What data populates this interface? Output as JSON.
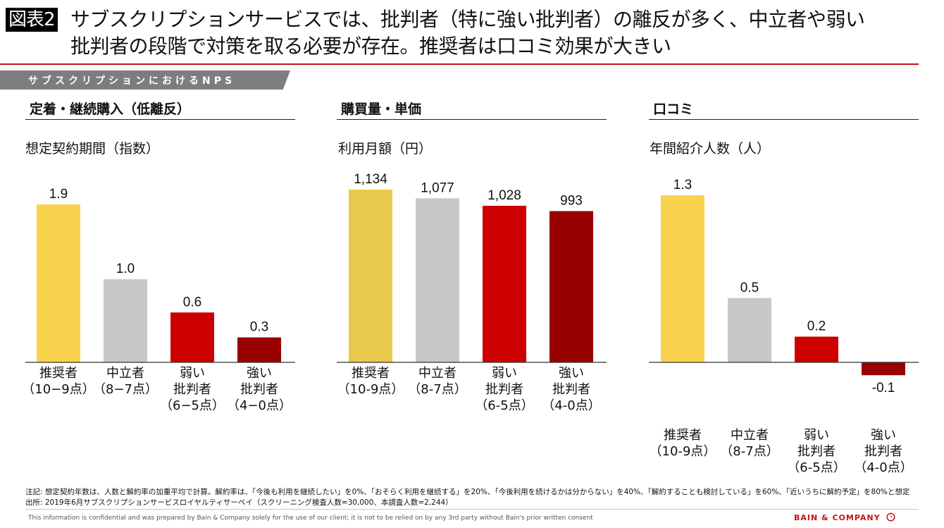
{
  "header": {
    "figure_badge": "図表2",
    "title_line1": "サブスクリプションサービスでは、批判者（特に強い批判者）の離反が多く、中立者や弱い",
    "title_line2": "批判者の段階で対策を取る必要が存在。推奨者は口コミ効果が大きい"
  },
  "banner": {
    "label": "サブスクリプションにおけるNPS"
  },
  "colors": {
    "accent_red": "#c0161d",
    "promoter": "#f9d34d",
    "promoter_alt": "#e8c94b",
    "neutral": "#c8c8c8",
    "weak_critic": "#cc0000",
    "strong_critic": "#990000"
  },
  "sections": [
    {
      "heading": "定着・継続購入（低離反）",
      "metric": "想定契約期間（指数）"
    },
    {
      "heading": "購買量・単価",
      "metric": "利用月額（円）"
    },
    {
      "heading": "口コミ",
      "metric": "年間紹介人数（人）"
    }
  ],
  "chart_data": [
    {
      "type": "bar",
      "title": "想定契約期間（指数）",
      "categories": [
        [
          "推奨者",
          "（10−9点）"
        ],
        [
          "中立者",
          "（8−7点）"
        ],
        [
          "弱い",
          "批判者",
          "（6−5点）"
        ],
        [
          "強い",
          "批判者",
          "（4−0点）"
        ]
      ],
      "values": [
        1.9,
        1.0,
        0.6,
        0.3
      ],
      "labels": [
        "1.9",
        "1.0",
        "0.6",
        "0.3"
      ],
      "ylim": [
        0,
        1.9
      ],
      "xlabel": "",
      "ylabel": "",
      "grid": false
    },
    {
      "type": "bar",
      "title": "利用月額（円）",
      "categories": [
        [
          "推奨者",
          "（10-9点）"
        ],
        [
          "中立者",
          "（8-7点）"
        ],
        [
          "弱い",
          "批判者",
          "（6-5点）"
        ],
        [
          "強い",
          "批判者",
          "（4-0点）"
        ]
      ],
      "values": [
        1134,
        1077,
        1028,
        993
      ],
      "labels": [
        "1,134",
        "1,077",
        "1,028",
        "993"
      ],
      "ylim": [
        0,
        1134
      ],
      "xlabel": "",
      "ylabel": "",
      "grid": false
    },
    {
      "type": "bar",
      "title": "年間紹介人数（人）",
      "categories": [
        [
          "推奨者",
          "（10-9点）"
        ],
        [
          "中立者",
          "（8-7点）"
        ],
        [
          "弱い",
          "批判者",
          "（6-5点）"
        ],
        [
          "強い",
          "批判者",
          "（4-0点）"
        ]
      ],
      "values": [
        1.3,
        0.5,
        0.2,
        -0.1
      ],
      "labels": [
        "1.3",
        "0.5",
        "0.2",
        "-0.1"
      ],
      "ylim": [
        -0.1,
        1.3
      ],
      "xlabel": "",
      "ylabel": "",
      "grid": false
    }
  ],
  "footer": {
    "note": "注記: 想定契約年数は、人数と解約率の加重平均で計算。解約率は、「今後も利用を継続したい」を0%、「おそらく利用を継続する」を20%、「今後利用を続けるかは分からない」を40%、「解約することも検討している」を60%、「近いうちに解約予定」を80%と想定",
    "source": "出所: 2019年6月サブスクリプションサービスロイヤルティサーベイ（スクリーニング検査人数=30,000、本調査人数=2,244）",
    "confidential": "This information is confidential and was prepared by Bain & Company solely for the use of our client; it is not to be relied on by any 3rd party without Bain's prior written consent",
    "logo": "BAIN & COMPANY"
  }
}
